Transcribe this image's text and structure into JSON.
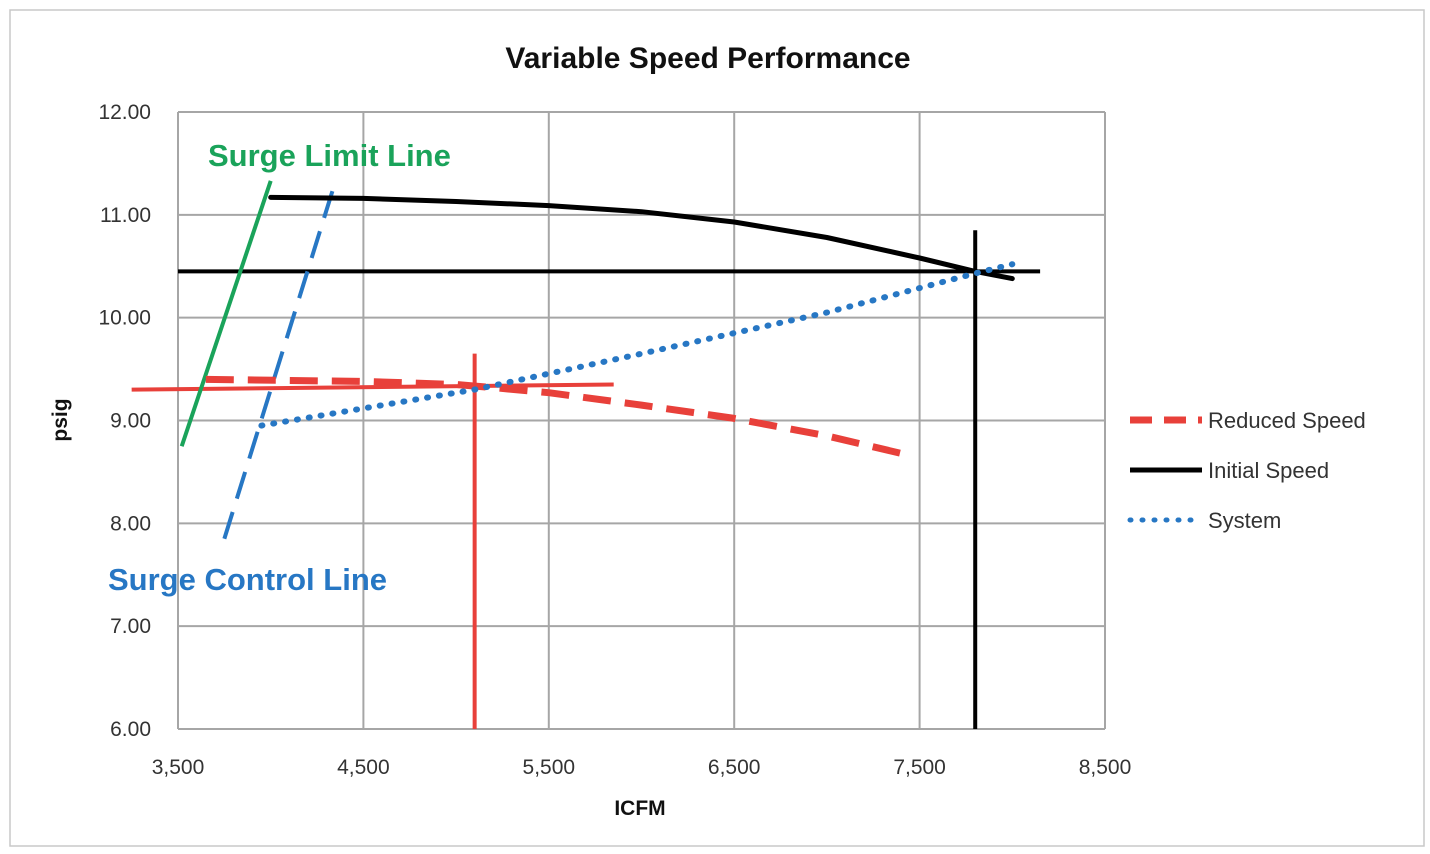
{
  "chart_data": {
    "type": "line",
    "title": "Variable Speed Performance",
    "xlabel": "ICFM",
    "ylabel": "psig",
    "xlim": [
      3500,
      8500
    ],
    "ylim": [
      6.0,
      12.0
    ],
    "x_ticks": [
      {
        "value": 3500,
        "label": "3,500"
      },
      {
        "value": 4500,
        "label": "4,500"
      },
      {
        "value": 5500,
        "label": "5,500"
      },
      {
        "value": 6500,
        "label": "6,500"
      },
      {
        "value": 7500,
        "label": "7,500"
      },
      {
        "value": 8500,
        "label": "8,500"
      }
    ],
    "y_ticks": [
      {
        "value": 12.0,
        "label": "12.00"
      },
      {
        "value": 11.0,
        "label": "11.00"
      },
      {
        "value": 10.0,
        "label": "10.00"
      },
      {
        "value": 9.0,
        "label": "9.00"
      },
      {
        "value": 8.0,
        "label": "8.00"
      },
      {
        "value": 7.0,
        "label": "7.00"
      },
      {
        "value": 6.0,
        "label": "6.00"
      }
    ],
    "grid": true,
    "legend_position": "right",
    "series": [
      {
        "key": "reduced",
        "name": "Reduced Speed",
        "color": "#e8403a",
        "style": "dashed",
        "x": [
          3650,
          4500,
          5000,
          5200,
          5500,
          6000,
          6500,
          7000,
          7400
        ],
        "y": [
          9.4,
          9.38,
          9.35,
          9.32,
          9.27,
          9.15,
          9.02,
          8.85,
          8.68
        ]
      },
      {
        "key": "initial",
        "name": "Initial Speed",
        "color": "#000000",
        "style": "solid",
        "x": [
          4000,
          4500,
          5000,
          5500,
          6000,
          6500,
          7000,
          7500,
          7800,
          8000
        ],
        "y": [
          11.17,
          11.16,
          11.13,
          11.09,
          11.03,
          10.93,
          10.78,
          10.58,
          10.45,
          10.38
        ]
      },
      {
        "key": "system",
        "name": "System",
        "color": "#2777c4",
        "style": "dotted",
        "x": [
          3950,
          5100,
          6000,
          7000,
          7800,
          8000
        ],
        "y": [
          8.95,
          9.3,
          9.65,
          10.05,
          10.43,
          10.52
        ]
      }
    ],
    "reference_lines": [
      {
        "key": "initial-h",
        "color": "#000000",
        "x": [
          3500,
          8150
        ],
        "y": [
          10.45,
          10.45
        ]
      },
      {
        "key": "initial-v",
        "color": "#000000",
        "x": [
          7800,
          7800
        ],
        "y": [
          6.0,
          10.85
        ]
      },
      {
        "key": "reduced-h",
        "color": "#e8403a",
        "x": [
          3250,
          5850
        ],
        "y": [
          9.3,
          9.35
        ]
      },
      {
        "key": "reduced-v",
        "color": "#e8403a",
        "x": [
          5100,
          5100
        ],
        "y": [
          6.0,
          9.65
        ]
      },
      {
        "key": "surge-limit",
        "color": "#1aa35a",
        "style": "solid",
        "x": [
          3520,
          4000
        ],
        "y": [
          8.75,
          11.33
        ]
      },
      {
        "key": "surge-control",
        "color": "#2777c4",
        "style": "dashed",
        "x": [
          3750,
          4350
        ],
        "y": [
          7.85,
          11.33
        ]
      }
    ],
    "annotations": {
      "surge_limit": {
        "text": "Surge Limit Line",
        "color": "#1aa35a"
      },
      "surge_control": {
        "text": "Surge Control Line",
        "color": "#2777c4"
      }
    }
  }
}
